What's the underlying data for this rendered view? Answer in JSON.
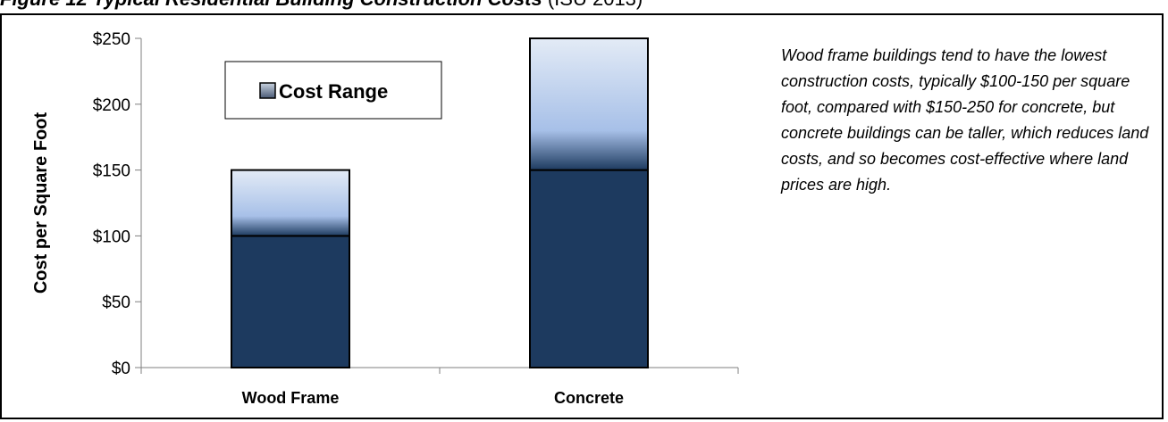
{
  "figure": {
    "label": "Figure 12",
    "title": "Typical Residential Building Construction Costs",
    "source": "(ISU 2013)"
  },
  "note": "Wood frame buildings tend to have the lowest construction costs, typically $100-150 per square foot, compared with $150-250 for concrete, but concrete buildings can be taller, which reduces land costs, and so becomes cost-effective where land prices are high.",
  "chart_data": {
    "type": "bar",
    "stacked": true,
    "categories": [
      "Wood Frame",
      "Concrete"
    ],
    "series": [
      {
        "name": "",
        "values": [
          100,
          150
        ],
        "color": "#1d3a5f"
      },
      {
        "name": "Cost Range",
        "values": [
          50,
          100
        ],
        "color_top": "#a7bfe6",
        "color_bottom": "#e3ebf6"
      }
    ],
    "xlabel": "",
    "ylabel": "Cost per Square Foot",
    "ylim": [
      0,
      250
    ],
    "yticks": [
      0,
      50,
      100,
      150,
      200,
      250
    ],
    "ytick_labels": [
      "$0",
      "$50",
      "$100",
      "$150",
      "$200",
      "$250"
    ],
    "legend": {
      "position": "top-left",
      "entries": [
        "Cost Range"
      ]
    },
    "grid": false
  }
}
